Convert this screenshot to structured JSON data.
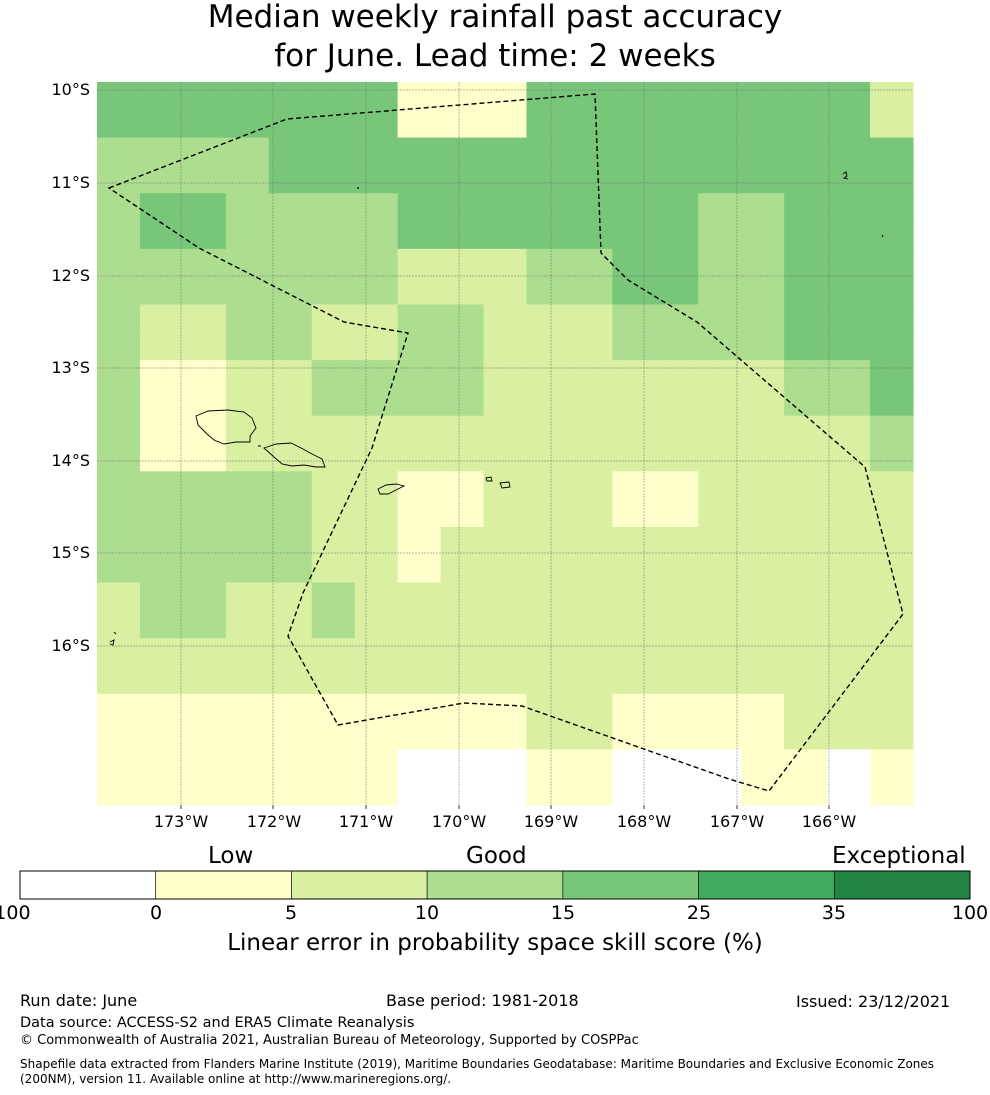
{
  "title_line1": "Median weekly rainfall past accuracy",
  "title_line2": "for June. Lead time: 2 weeks",
  "lat_labels": [
    "10°S",
    "11°S",
    "12°S",
    "13°S",
    "14°S",
    "15°S",
    "16°S"
  ],
  "lon_labels": [
    "173°W",
    "172°W",
    "171°W",
    "170°W",
    "169°W",
    "168°W",
    "167°W",
    "166°W"
  ],
  "colorbar": {
    "words": [
      "Low",
      "Good",
      "Exceptional"
    ],
    "ticks": [
      "-100",
      "0",
      "5",
      "10",
      "15",
      "25",
      "35",
      "100"
    ],
    "colors": [
      "#ffffff",
      "#ffffcc",
      "#d9f0a3",
      "#addd8e",
      "#78c679",
      "#41ab5d",
      "#238443"
    ],
    "label": "Linear error in probability space skill score (%)"
  },
  "grid": {
    "rows": [
      "4444444111444444442",
      "4444444111444444442",
      "3333444444444444444",
      "3333444444444444444",
      "3443333444444433444",
      "3443333444444433444",
      "3333333222334433444",
      "3333333222334433444",
      "3223322332223333444",
      "3223322332223333444",
      "3112233332222222334",
      "3112233332222222334",
      "3112222222222222223",
      "3112222222222222223",
      "3333322112221122222",
      "3333322112221122222",
      "3333322122222222222",
      "3333322122222222222",
      "2332232222222222222",
      "2332232222222222222",
      "2222222222222222222",
      "2222222222222222222",
      "1111111111221111222",
      "1111111111221111222",
      "1111111000110001101",
      "1111111000110001101"
    ]
  },
  "footer": {
    "run_date": "Run date: June",
    "base_period": "Base period: 1981-2018",
    "issued": "Issued: 23/12/2021",
    "data_source": "Data source: ACCESS-S2 and ERA5 Climate Reanalysis",
    "copyright": "© Commonwealth of Australia 2021, Australian Bureau of Meteorology, Supported by COSPPac",
    "shapefile_line1": "Shapefile data extracted from Flanders Marine Institute (2019), Maritime Boundaries Geodatabase: Maritime Boundaries and Exclusive Economic Zones",
    "shapefile_line2": "(200NM), version 11. Available online at http://www.marineregions.org/."
  }
}
